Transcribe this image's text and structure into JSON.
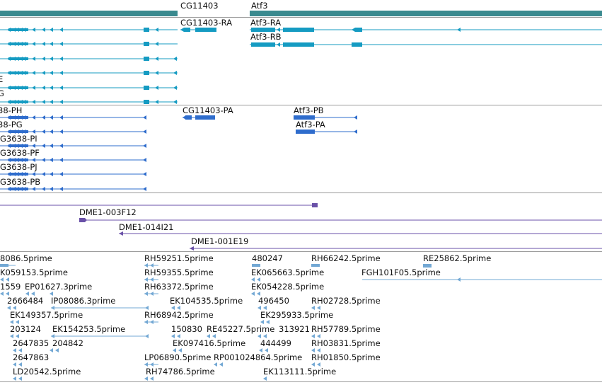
{
  "colors": {
    "gene": "#3a8a8f",
    "flybase_tx": "#159bc2",
    "refseq_tx": "#2e6ccc",
    "bac": "#6a51a8",
    "est": "#73a8d4",
    "divider": "#9a9a9a"
  },
  "genes": [
    {
      "label": "CG11403"
    },
    {
      "label": "Atf3"
    }
  ],
  "flybase_transcripts": [
    {
      "label": "CG11403-RA"
    },
    {
      "label": "Atf3-RA"
    },
    {
      "label": "Atf3-RB"
    },
    {
      "label": "E"
    },
    {
      "label": "G"
    }
  ],
  "refseq_transcripts": [
    {
      "label": "38-PH"
    },
    {
      "label": "38-PG"
    },
    {
      "label": "G3638-PI"
    },
    {
      "label": "G3638-PF"
    },
    {
      "label": "G3638-PJ"
    },
    {
      "label": "G3638-PB"
    },
    {
      "label": "CG11403-PA"
    },
    {
      "label": "Atf3-PB"
    },
    {
      "label": "Atf3-PA"
    }
  ],
  "bacs": [
    {
      "label": "DME1-003F12"
    },
    {
      "label": "DME1-014I21"
    },
    {
      "label": "DME1-001E19"
    }
  ],
  "ests": [
    {
      "label": "8086.5prime"
    },
    {
      "label": "RH59251.5prime"
    },
    {
      "label": "480247"
    },
    {
      "label": "RH66242.5prime"
    },
    {
      "label": "RE25862.5prime"
    },
    {
      "label": "K059153.5prime"
    },
    {
      "label": "RH59355.5prime"
    },
    {
      "label": "EK065663.5prime"
    },
    {
      "label": "FGH101F05.5prime"
    },
    {
      "label": "1559"
    },
    {
      "label": "EP01627.3prime"
    },
    {
      "label": "RH63372.5prime"
    },
    {
      "label": "EK054228.5prime"
    },
    {
      "label": "2666484"
    },
    {
      "label": "IP08086.3prime"
    },
    {
      "label": "EK104535.5prime"
    },
    {
      "label": "496450"
    },
    {
      "label": "RH02728.5prime"
    },
    {
      "label": "EK149357.5prime"
    },
    {
      "label": "RH68942.5prime"
    },
    {
      "label": "EK295933.5prime"
    },
    {
      "label": "203124"
    },
    {
      "label": "EK154253.5prime"
    },
    {
      "label": "150830"
    },
    {
      "label": "RE45227.5prime"
    },
    {
      "label": "313921"
    },
    {
      "label": "RH57789.5prime"
    },
    {
      "label": "2647835"
    },
    {
      "label": "204842"
    },
    {
      "label": "EK097416.5prime"
    },
    {
      "label": "444499"
    },
    {
      "label": "RH03831.5prime"
    },
    {
      "label": "2647863"
    },
    {
      "label": "LP06890.5prime"
    },
    {
      "label": "RP001024864.5prime"
    },
    {
      "label": "RH01850.5prime"
    },
    {
      "label": "LD20542.5prime"
    },
    {
      "label": "RH74786.5prime"
    },
    {
      "label": "EK113111.5prime"
    }
  ]
}
